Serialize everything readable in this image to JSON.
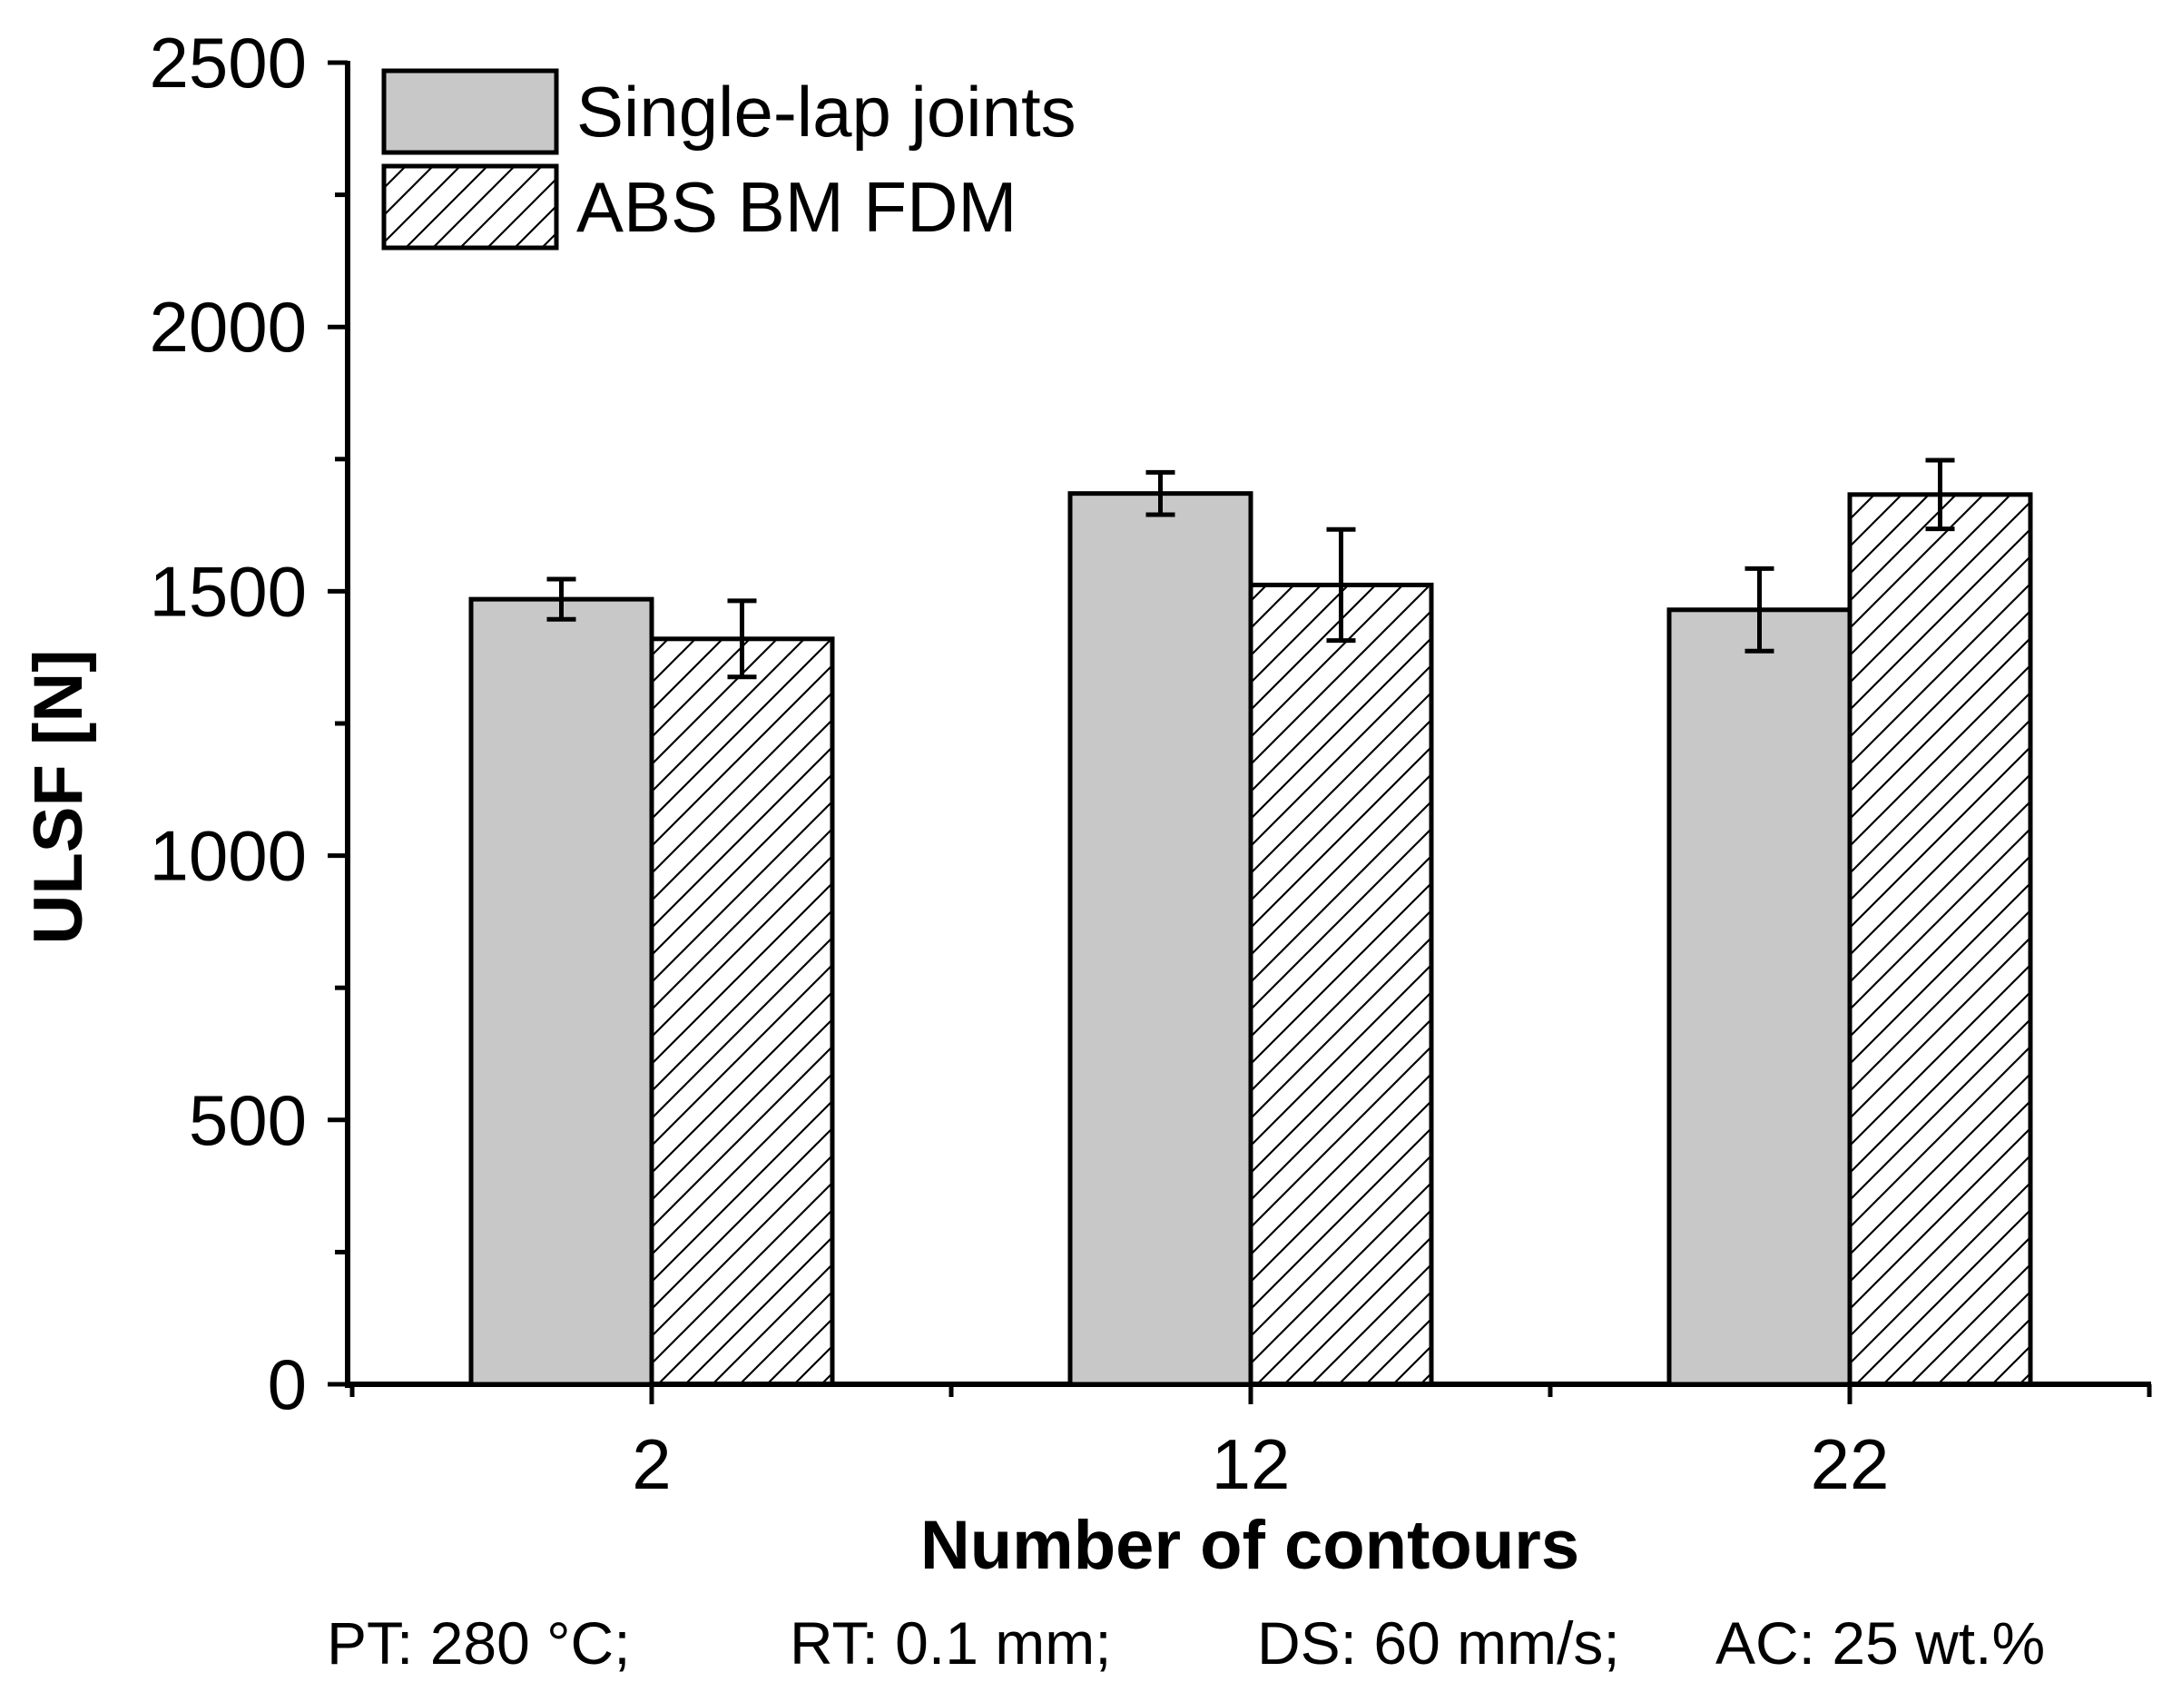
{
  "chart_data": {
    "type": "bar",
    "xlabel": "Number of contours",
    "ylabel": "ULSF [N]",
    "categories": [
      "2",
      "12",
      "22"
    ],
    "ylim": [
      0,
      2500
    ],
    "yticks": [
      0,
      500,
      1000,
      1500,
      2000,
      2500
    ],
    "yticks_labels": [
      "0",
      "500",
      "1000",
      "1500",
      "2000",
      "2500"
    ],
    "series": [
      {
        "name": "Single-lap joints",
        "pattern": "solid",
        "color": "#c8c8c8",
        "values": [
          1485,
          1685,
          1465
        ],
        "errors": [
          38,
          40,
          78
        ]
      },
      {
        "name": "ABS BM FDM",
        "pattern": "hatch",
        "color": "#ffffff",
        "values": [
          1410,
          1512,
          1683
        ],
        "errors": [
          72,
          105,
          65
        ]
      }
    ],
    "legend_position": "top-left",
    "grid": false
  },
  "footnote": {
    "items": [
      "PT: 280 °C;",
      "RT: 0.1 mm;",
      "DS: 60 mm/s;",
      "AC: 25 wt.%"
    ]
  }
}
